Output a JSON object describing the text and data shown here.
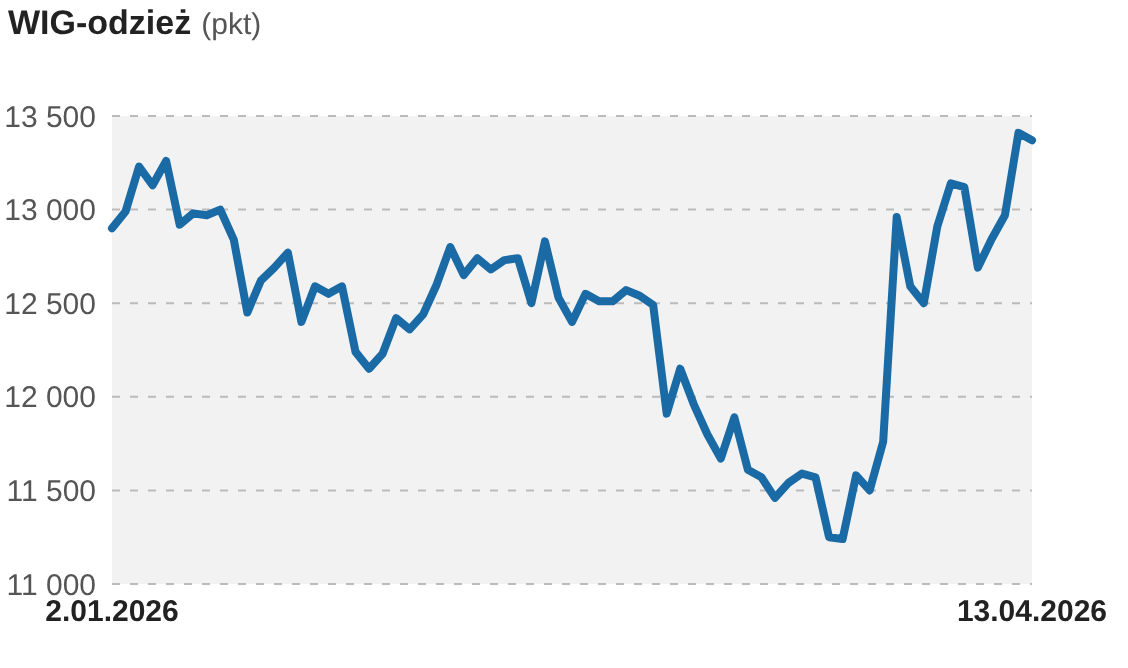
{
  "chart_data": {
    "type": "line",
    "title": "WIG-odzież",
    "subtitle": "(pkt)",
    "categories": [
      "2.01.2026",
      null,
      null,
      null,
      null,
      null,
      null,
      null,
      null,
      null,
      null,
      null,
      null,
      null,
      null,
      null,
      null,
      null,
      null,
      null,
      null,
      null,
      null,
      null,
      null,
      null,
      null,
      null,
      null,
      null,
      null,
      null,
      null,
      null,
      null,
      null,
      null,
      null,
      null,
      null,
      null,
      null,
      null,
      null,
      null,
      null,
      null,
      null,
      null,
      null,
      null,
      null,
      null,
      null,
      null,
      null,
      null,
      null,
      null,
      null,
      null,
      null,
      null,
      null,
      null,
      null,
      null,
      null,
      "13.04.2026"
    ],
    "series": [
      {
        "color": "#1a6aa6",
        "values": [
          12900,
          12990,
          13230,
          13130,
          13260,
          12920,
          12980,
          12970,
          13000,
          12840,
          12450,
          12620,
          12690,
          12770,
          12400,
          12590,
          12550,
          12590,
          12240,
          12150,
          12230,
          12420,
          12360,
          12440,
          12600,
          12800,
          12650,
          12740,
          12680,
          12730,
          12740,
          12500,
          12830,
          12530,
          12400,
          12550,
          12510,
          12510,
          12570,
          12540,
          12490,
          11910,
          12150,
          11960,
          11800,
          11670,
          11890,
          11610,
          11570,
          11460,
          11540,
          11590,
          11570,
          11250,
          11240,
          11580,
          11500,
          11760,
          12960,
          12590,
          12500,
          12910,
          13140,
          13120,
          12690,
          12840,
          12970,
          13410,
          13370
        ]
      }
    ],
    "ylim": [
      11000,
      13500
    ],
    "yticks": [
      {
        "value": 11000,
        "label": "11 000"
      },
      {
        "value": 11500,
        "label": "11 500"
      },
      {
        "value": 12000,
        "label": "12 000"
      },
      {
        "value": 12500,
        "label": "12 500"
      },
      {
        "value": 13000,
        "label": "13 000"
      },
      {
        "value": 13500,
        "label": "13 500"
      }
    ],
    "grid": "y",
    "legend": false,
    "marker": "none",
    "line_style": "solid"
  }
}
